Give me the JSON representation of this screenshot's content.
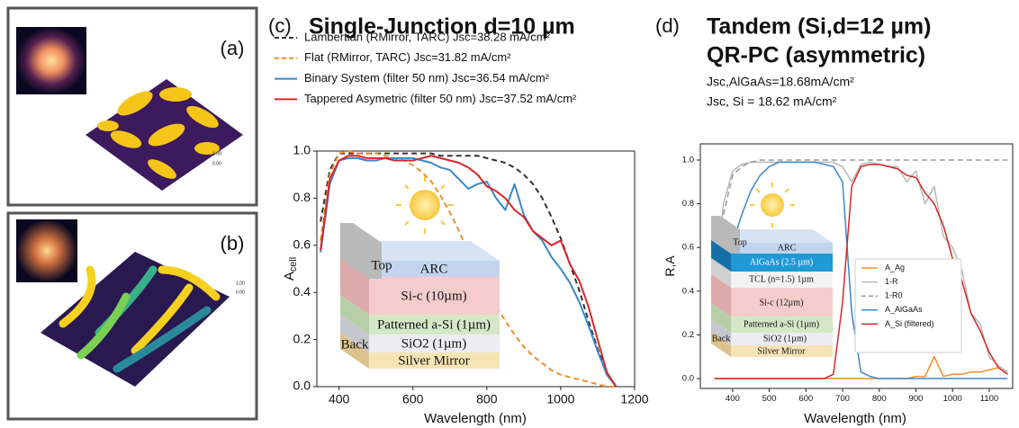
{
  "images": [
    {
      "label": "(a)",
      "scale": [
        "1.00",
        "0.00"
      ]
    },
    {
      "label": "(b)",
      "scale": [
        "1.00",
        "0.00"
      ]
    }
  ],
  "chart_data": [
    {
      "type": "line",
      "panel": "(c)",
      "title": "Single-Junction d=10 µm",
      "xlabel": "Wavelength (nm)",
      "ylabel": "A",
      "ylabel_sub": "cell",
      "inset_labels": [
        "Top",
        "ARC",
        "Si-c (10µm)",
        "Patterned a-Si (1µm)",
        "Back",
        "SiO2 (1µm)",
        "Silver Mirror"
      ],
      "xlim": [
        340,
        1200
      ],
      "ylim": [
        0,
        1
      ],
      "xticks": [
        400,
        600,
        800,
        1000,
        1200
      ],
      "yticks": [
        {
          "value": 0,
          "label": "0.0"
        },
        0.2,
        0.4,
        0.6,
        0.8,
        {
          "value": 1,
          "label": "1.0"
        }
      ],
      "x": [
        350,
        375,
        400,
        425,
        450,
        475,
        500,
        525,
        550,
        575,
        600,
        625,
        650,
        675,
        700,
        725,
        750,
        775,
        800,
        825,
        850,
        875,
        900,
        925,
        950,
        975,
        1000,
        1025,
        1050,
        1075,
        1100,
        1125,
        1150
      ],
      "series": [
        {
          "name": "Lambertian (RMirror, TARC) Jsc=38.28 mA/cm²",
          "color": "#333333",
          "style": "dashed",
          "values": [
            0.7,
            0.92,
            0.99,
            0.99,
            0.99,
            0.99,
            0.99,
            0.99,
            0.99,
            0.99,
            0.99,
            0.99,
            0.99,
            0.98,
            0.98,
            0.98,
            0.98,
            0.98,
            0.97,
            0.96,
            0.95,
            0.93,
            0.9,
            0.86,
            0.8,
            0.72,
            0.63,
            0.52,
            0.41,
            0.28,
            0.16,
            0.06,
            0.0
          ]
        },
        {
          "name": "Flat (RMirror, TARC) Jsc=31.82 mA/cm²",
          "color": "#f28e2b",
          "style": "dashed",
          "values": [
            0.62,
            0.9,
            0.99,
            1.0,
            0.99,
            0.99,
            0.99,
            0.98,
            0.97,
            0.96,
            0.94,
            0.91,
            0.87,
            0.81,
            0.74,
            0.66,
            0.57,
            0.49,
            0.41,
            0.34,
            0.28,
            0.22,
            0.17,
            0.13,
            0.1,
            0.07,
            0.05,
            0.04,
            0.03,
            0.02,
            0.01,
            0.0,
            0.0
          ]
        },
        {
          "name": "Binary System (filter 50 nm) Jsc=36.54 mA/cm²",
          "color": "#3a87c8",
          "style": "solid",
          "values": [
            0.57,
            0.86,
            0.96,
            0.97,
            0.97,
            0.96,
            0.96,
            0.97,
            0.97,
            0.97,
            0.97,
            0.96,
            0.95,
            0.93,
            0.92,
            0.88,
            0.84,
            0.86,
            0.87,
            0.8,
            0.75,
            0.86,
            0.73,
            0.66,
            0.62,
            0.55,
            0.5,
            0.44,
            0.36,
            0.26,
            0.15,
            0.05,
            0.0
          ]
        },
        {
          "name": "Tappered Asymetric (filter 50 nm) Jsc=37.52 mA/cm²",
          "color": "#d62728",
          "style": "solid",
          "values": [
            0.58,
            0.88,
            0.96,
            0.98,
            0.98,
            0.97,
            0.97,
            0.97,
            0.96,
            0.96,
            0.96,
            0.97,
            0.98,
            0.97,
            0.96,
            0.95,
            0.93,
            0.9,
            0.85,
            0.83,
            0.8,
            0.75,
            0.72,
            0.66,
            0.63,
            0.6,
            0.62,
            0.52,
            0.45,
            0.34,
            0.2,
            0.06,
            0.0
          ]
        }
      ]
    },
    {
      "type": "line",
      "panel": "(d)",
      "title": "Tandem (Si,d=12 µm)",
      "subtitle": "QR-PC (asymmetric)",
      "annotations": [
        "Jsc,AlGaAs=18.68mA/cm²",
        "Jsc, Si = 18.62 mA/cm²"
      ],
      "xlabel": "Wavelength (nm)",
      "ylabel": "R,A",
      "inset_labels": [
        "Top",
        "ARC",
        "AlGaAs (2.5 µm)",
        "TCL (n=1.5) 1µm",
        "Si-c (12µm)",
        "Patterned a-Si (1µm)",
        "Back",
        "SiO2 (1µm)",
        "Silver Mirror"
      ],
      "xlim": [
        312,
        1164
      ],
      "ylim": [
        -0.045,
        1.074
      ],
      "xticks": [
        400,
        500,
        600,
        700,
        800,
        900,
        1000,
        1100
      ],
      "yticks": [
        {
          "value": 0,
          "label": "0.0"
        },
        0.2,
        0.4,
        0.6,
        0.8,
        {
          "value": 1,
          "label": "1.0"
        }
      ],
      "x": [
        350,
        375,
        400,
        425,
        450,
        475,
        500,
        525,
        550,
        575,
        600,
        625,
        650,
        675,
        700,
        725,
        750,
        775,
        800,
        825,
        850,
        875,
        900,
        925,
        950,
        975,
        1000,
        1025,
        1050,
        1075,
        1100,
        1125,
        1150
      ],
      "series": [
        {
          "name": "A_Ag",
          "color": "#f28e2b",
          "style": "solid",
          "values": [
            0,
            0,
            0,
            0,
            0,
            0,
            0,
            0,
            0,
            0,
            0,
            0,
            0,
            0,
            0,
            0,
            0,
            0,
            0,
            0,
            0,
            0,
            0.01,
            0.01,
            0.1,
            0.01,
            0.02,
            0.02,
            0.03,
            0.03,
            0.04,
            0.05,
            0.02
          ]
        },
        {
          "name": "1-R",
          "color": "#b8b8b8",
          "style": "solid",
          "values": [
            0.35,
            0.8,
            0.95,
            0.98,
            0.99,
            0.99,
            0.99,
            0.99,
            0.99,
            0.99,
            0.99,
            0.99,
            0.99,
            0.99,
            0.97,
            0.9,
            0.98,
            0.99,
            0.98,
            0.97,
            0.97,
            0.9,
            0.95,
            0.8,
            0.88,
            0.65,
            0.6,
            0.5,
            0.3,
            0.25,
            0.1,
            0.06,
            0.03
          ]
        },
        {
          "name": "1-R0",
          "color": "#999999",
          "style": "dashed",
          "values": [
            0.3,
            0.75,
            0.93,
            0.97,
            0.99,
            1,
            1,
            1,
            1,
            1,
            1,
            1,
            1,
            1,
            1,
            1,
            1,
            1,
            1,
            1,
            1,
            1,
            1,
            1,
            1,
            1,
            1,
            1,
            1,
            1,
            1,
            1,
            1
          ]
        },
        {
          "name": "A_AlGaAs",
          "color": "#3a87c8",
          "style": "solid",
          "values": [
            null,
            null,
            0.62,
            0.75,
            0.86,
            0.93,
            0.97,
            0.99,
            0.99,
            0.99,
            0.99,
            0.99,
            0.98,
            0.97,
            0.9,
            0.3,
            0.03,
            0.01,
            0,
            0,
            0,
            0,
            0,
            0,
            0,
            0,
            0,
            0,
            0,
            0,
            0,
            0,
            0
          ]
        },
        {
          "name": "A_Si (filtered)",
          "color": "#d62728",
          "style": "solid",
          "values": [
            0,
            0,
            0,
            0,
            0,
            0,
            0,
            0,
            0,
            0,
            0,
            0,
            0,
            0.02,
            0.35,
            0.88,
            0.97,
            0.98,
            0.98,
            0.97,
            0.96,
            0.93,
            0.92,
            0.85,
            0.8,
            0.7,
            0.55,
            0.45,
            0.3,
            0.22,
            0.12,
            0.05,
            0.02
          ]
        }
      ]
    }
  ]
}
